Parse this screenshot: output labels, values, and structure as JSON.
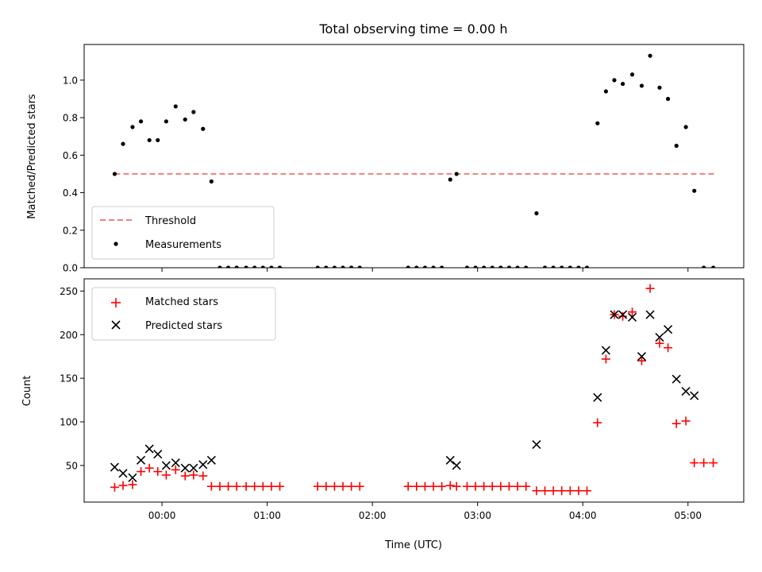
{
  "chart_data": [
    {
      "type": "scatter",
      "title": "Total observing time = 0.00 h",
      "xlabel": "",
      "ylabel": "Matched/Predicted stars",
      "ylim": [
        0,
        1.19
      ],
      "yticks": [
        0.0,
        0.2,
        0.4,
        0.6,
        0.8,
        1.0
      ],
      "ytick_labels": [
        "0.0",
        "0.2",
        "0.4",
        "0.6",
        "0.8",
        "1.0"
      ],
      "xlim_hours": [
        -0.74,
        5.53
      ],
      "xticks_hours": [
        0,
        1,
        2,
        3,
        4,
        5
      ],
      "show_xtick_labels": false,
      "legend": {
        "placement": "lower-left",
        "entries": [
          {
            "label": "Threshold",
            "style": "dashed-line",
            "color": "#f08080"
          },
          {
            "label": "Measurements",
            "style": "dot",
            "color": "#000000"
          }
        ]
      },
      "threshold": {
        "value": 0.5,
        "x_start": -0.45,
        "x_end": 5.25,
        "color": "#f08080"
      },
      "series": [
        {
          "name": "Measurements",
          "color": "#000000",
          "x": [
            -0.45,
            -0.37,
            -0.28,
            -0.2,
            -0.12,
            -0.04,
            0.04,
            0.13,
            0.22,
            0.3,
            0.39,
            0.47,
            0.55,
            0.63,
            0.71,
            0.8,
            0.88,
            0.96,
            1.04,
            1.12,
            1.48,
            1.56,
            1.64,
            1.72,
            1.8,
            1.88,
            2.34,
            2.42,
            2.5,
            2.58,
            2.66,
            2.74,
            2.8,
            2.9,
            2.98,
            3.06,
            3.14,
            3.22,
            3.3,
            3.38,
            3.46,
            3.56,
            3.64,
            3.72,
            3.8,
            3.88,
            3.96,
            4.04,
            4.14,
            4.22,
            4.3,
            4.38,
            4.47,
            4.56,
            4.64,
            4.73,
            4.81,
            4.89,
            4.98,
            5.06,
            5.15,
            5.24
          ],
          "y": [
            0.5,
            0.66,
            0.75,
            0.78,
            0.68,
            0.68,
            0.78,
            0.86,
            0.79,
            0.83,
            0.74,
            0.46,
            0,
            0,
            0,
            0,
            0,
            0,
            0,
            0,
            0,
            0,
            0,
            0,
            0,
            0,
            0,
            0,
            0,
            0,
            0,
            0.47,
            0.5,
            0,
            0,
            0,
            0,
            0,
            0,
            0,
            0,
            0.29,
            0,
            0,
            0,
            0,
            0,
            0,
            0.77,
            0.94,
            1.0,
            0.98,
            1.03,
            0.97,
            1.13,
            0.96,
            0.9,
            0.65,
            0.75,
            0.41,
            0,
            0
          ]
        }
      ]
    },
    {
      "type": "scatter",
      "title": "",
      "xlabel": "Time (UTC)",
      "ylabel": "Count",
      "ylim": [
        8,
        264
      ],
      "yticks": [
        50,
        100,
        150,
        200,
        250
      ],
      "ytick_labels": [
        "50",
        "100",
        "150",
        "200",
        "250"
      ],
      "xlim_hours": [
        -0.74,
        5.53
      ],
      "xticks_hours": [
        0,
        1,
        2,
        3,
        4,
        5
      ],
      "xtick_labels": [
        "00:00",
        "01:00",
        "02:00",
        "03:00",
        "04:00",
        "05:00"
      ],
      "legend": {
        "placement": "upper-left",
        "entries": [
          {
            "label": "Matched stars",
            "style": "plus",
            "color": "#ff0000"
          },
          {
            "label": "Predicted stars",
            "style": "x",
            "color": "#000000"
          }
        ]
      },
      "series": [
        {
          "name": "Matched stars",
          "marker": "plus",
          "color": "#ff0000",
          "x": [
            -0.45,
            -0.37,
            -0.28,
            -0.2,
            -0.12,
            -0.04,
            0.04,
            0.13,
            0.22,
            0.3,
            0.39,
            0.47,
            0.55,
            0.63,
            0.71,
            0.8,
            0.88,
            0.96,
            1.04,
            1.12,
            1.48,
            1.56,
            1.64,
            1.72,
            1.8,
            1.88,
            2.34,
            2.42,
            2.5,
            2.58,
            2.66,
            2.74,
            2.8,
            2.9,
            2.98,
            3.06,
            3.14,
            3.22,
            3.3,
            3.38,
            3.46,
            3.56,
            3.64,
            3.72,
            3.8,
            3.88,
            3.96,
            4.04,
            4.14,
            4.22,
            4.3,
            4.38,
            4.47,
            4.56,
            4.64,
            4.73,
            4.81,
            4.89,
            4.98,
            5.06,
            5.15,
            5.24
          ],
          "y": [
            25,
            27,
            28,
            43,
            47,
            43,
            39,
            45,
            38,
            39,
            38,
            26,
            26,
            26,
            26,
            26,
            26,
            26,
            26,
            26,
            26,
            26,
            26,
            26,
            26,
            26,
            26,
            26,
            26,
            26,
            26,
            27,
            26,
            26,
            26,
            26,
            26,
            26,
            26,
            26,
            26,
            21,
            21,
            21,
            21,
            21,
            21,
            21,
            99,
            172,
            223,
            221,
            226,
            170,
            253,
            190,
            185,
            98,
            101,
            53,
            53,
            53
          ]
        },
        {
          "name": "Predicted stars",
          "marker": "x",
          "color": "#000000",
          "x": [
            -0.45,
            -0.37,
            -0.28,
            -0.2,
            -0.12,
            -0.04,
            0.04,
            0.13,
            0.22,
            0.3,
            0.39,
            0.47,
            2.74,
            2.8,
            3.56,
            4.14,
            4.22,
            4.3,
            4.38,
            4.47,
            4.56,
            4.64,
            4.73,
            4.81,
            4.89,
            4.98,
            5.06
          ],
          "y": [
            48,
            41,
            36,
            56,
            69,
            63,
            50,
            53,
            47,
            47,
            51,
            56,
            56,
            50,
            74,
            128,
            182,
            223,
            223,
            220,
            175,
            223,
            197,
            206,
            149,
            135,
            130
          ]
        }
      ]
    }
  ]
}
